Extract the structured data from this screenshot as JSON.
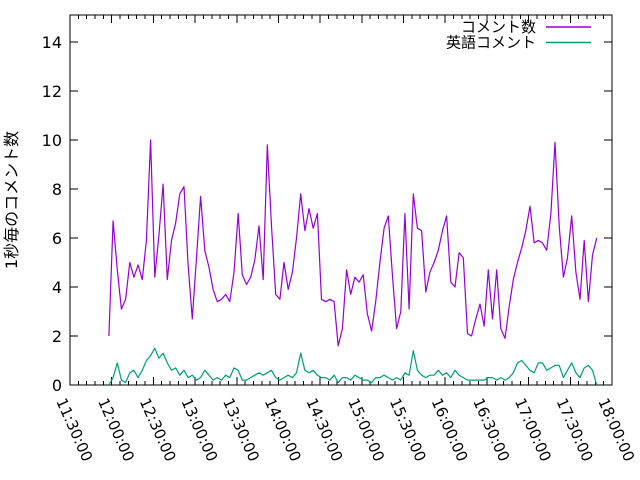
{
  "chart_data": {
    "type": "line",
    "title": "",
    "xlabel": "",
    "ylabel": "1秒毎のコメント数",
    "background_color": "#ffffff",
    "axis_color": "#000000",
    "grid": false,
    "legend_position": "top-right-inside",
    "ylim": [
      0,
      15.1
    ],
    "y_ticks": [
      "0",
      "2",
      "4",
      "6",
      "8",
      "10",
      "12",
      "14"
    ],
    "x_tick_labels": [
      "11:30:00",
      "12:00:00",
      "12:30:00",
      "13:00:00",
      "13:30:00",
      "14:00:00",
      "14:30:00",
      "15:00:00",
      "15:30:00",
      "16:00:00",
      "16:30:00",
      "17:00:00",
      "17:30:00",
      "18:00:00"
    ],
    "x_axis_range_minutes": [
      0,
      390
    ],
    "x_major_tick_minutes": 30,
    "x_minor_tick_minutes": 6,
    "series": [
      {
        "name": "コメント数",
        "color": "#9400d3",
        "x_start_minute": 28,
        "x_step_minutes": 3,
        "values": [
          2.0,
          6.7,
          4.7,
          3.1,
          3.5,
          5.0,
          4.4,
          4.9,
          4.3,
          5.9,
          10.0,
          4.4,
          6.1,
          8.2,
          4.3,
          5.9,
          6.6,
          7.8,
          8.1,
          4.9,
          2.7,
          5.2,
          7.7,
          5.5,
          4.8,
          3.9,
          3.4,
          3.5,
          3.7,
          3.4,
          4.6,
          7.0,
          4.5,
          4.1,
          4.4,
          5.1,
          6.5,
          4.3,
          9.8,
          6.5,
          3.7,
          3.5,
          5.0,
          3.9,
          4.6,
          6.0,
          7.8,
          6.3,
          7.2,
          6.4,
          7.0,
          3.5,
          3.4,
          3.5,
          3.4,
          1.6,
          2.3,
          4.7,
          3.7,
          4.4,
          4.2,
          4.5,
          2.9,
          2.2,
          3.4,
          5.0,
          6.4,
          6.9,
          4.5,
          2.3,
          3.0,
          7.0,
          3.1,
          7.8,
          6.4,
          6.3,
          3.8,
          4.6,
          5.0,
          5.5,
          6.3,
          6.9,
          4.2,
          4.0,
          5.4,
          5.2,
          2.1,
          2.0,
          2.7,
          3.3,
          2.4,
          4.7,
          2.7,
          4.7,
          2.3,
          1.9,
          3.2,
          4.3,
          5.0,
          5.6,
          6.3,
          7.3,
          5.8,
          5.9,
          5.8,
          5.5,
          7.0,
          9.9,
          6.5,
          4.4,
          5.2,
          6.9,
          4.6,
          3.5,
          5.9,
          3.4,
          5.3,
          6.0
        ]
      },
      {
        "name": "英語コメント",
        "color": "#009e73",
        "x_start_minute": 28,
        "x_step_minutes": 3,
        "values": [
          0.0,
          0.3,
          0.9,
          0.2,
          0.1,
          0.5,
          0.6,
          0.3,
          0.6,
          1.0,
          1.2,
          1.5,
          1.1,
          1.3,
          0.9,
          0.6,
          0.7,
          0.4,
          0.6,
          0.3,
          0.4,
          0.2,
          0.3,
          0.6,
          0.4,
          0.2,
          0.3,
          0.2,
          0.4,
          0.3,
          0.7,
          0.6,
          0.2,
          0.2,
          0.3,
          0.4,
          0.5,
          0.4,
          0.5,
          0.6,
          0.3,
          0.2,
          0.3,
          0.4,
          0.3,
          0.5,
          1.3,
          0.6,
          0.5,
          0.6,
          0.4,
          0.3,
          0.3,
          0.2,
          0.4,
          0.1,
          0.3,
          0.3,
          0.2,
          0.4,
          0.3,
          0.2,
          0.2,
          0.1,
          0.3,
          0.3,
          0.4,
          0.3,
          0.2,
          0.3,
          0.2,
          0.5,
          0.4,
          1.4,
          0.6,
          0.4,
          0.3,
          0.4,
          0.4,
          0.6,
          0.4,
          0.5,
          0.3,
          0.6,
          0.4,
          0.3,
          0.2,
          0.2,
          0.2,
          0.2,
          0.2,
          0.3,
          0.3,
          0.2,
          0.3,
          0.2,
          0.3,
          0.5,
          0.9,
          1.0,
          0.8,
          0.6,
          0.5,
          0.9,
          0.9,
          0.6,
          0.7,
          0.8,
          0.8,
          0.3,
          0.6,
          0.9,
          0.5,
          0.3,
          0.7,
          0.8,
          0.6,
          0.0
        ]
      }
    ]
  }
}
